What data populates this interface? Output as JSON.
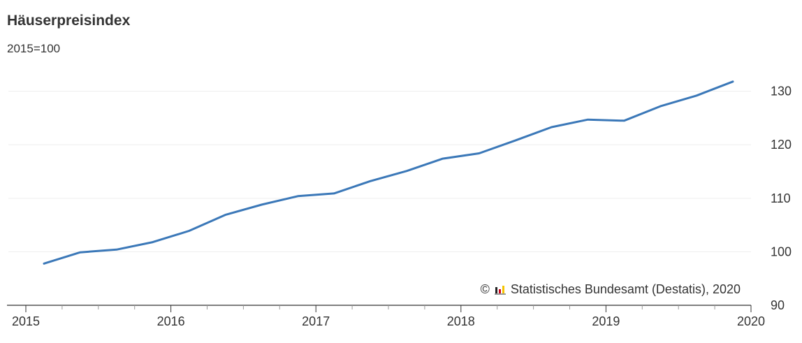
{
  "chart_data": {
    "type": "line",
    "title": "Häuserpreisindex",
    "subtitle": "2015=100",
    "xlabel": "",
    "ylabel": "",
    "x_ticks": [
      "2015",
      "2016",
      "2017",
      "2018",
      "2019",
      "2020"
    ],
    "y_ticks": [
      90,
      100,
      110,
      120,
      130
    ],
    "ylim": [
      90,
      134
    ],
    "xlim": [
      2015.0,
      2020.0
    ],
    "grid": true,
    "y_axis_position": "right",
    "series": [
      {
        "color": "#3b78b8",
        "x": [
          "2015-Q1",
          "2015-Q2",
          "2015-Q3",
          "2015-Q4",
          "2016-Q1",
          "2016-Q2",
          "2016-Q3",
          "2016-Q4",
          "2017-Q1",
          "2017-Q2",
          "2017-Q3",
          "2017-Q4",
          "2018-Q1",
          "2018-Q2",
          "2018-Q3",
          "2018-Q4",
          "2019-Q1",
          "2019-Q2",
          "2019-Q3",
          "2019-Q4"
        ],
        "values": [
          97.8,
          99.9,
          100.4,
          101.8,
          103.9,
          106.9,
          108.8,
          110.4,
          110.9,
          113.2,
          115.1,
          117.4,
          118.4,
          120.8,
          123.3,
          124.7,
          124.5,
          127.2,
          129.2,
          131.8
        ]
      }
    ]
  },
  "credit": {
    "copyright_symbol": "©",
    "text": "Statistisches Bundesamt (Destatis), 2020"
  }
}
